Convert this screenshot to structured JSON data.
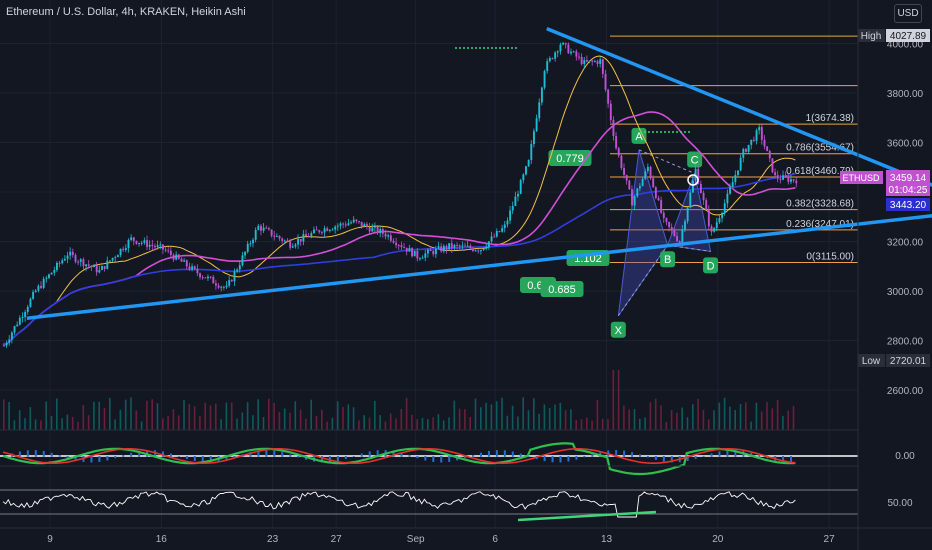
{
  "header": {
    "title": "Ethereum / U.S. Dollar, 4h, KRAKEN, Heikin Ashi",
    "currency": "USD"
  },
  "chart_data": {
    "type": "candlestick",
    "symbol": "ETHUSD",
    "price_axis": {
      "min": 2500,
      "max": 4100,
      "ticks": [
        2600,
        2800,
        3000,
        3200,
        3400,
        3600,
        3800,
        4000
      ],
      "tick_labels": [
        "2600.00",
        "2800.00",
        "3000.00",
        "3200.00",
        "3400.00",
        "3600.00",
        "3800.00",
        "4000.00"
      ]
    },
    "time_axis": {
      "labels": [
        {
          "label": "9",
          "day": 9
        },
        {
          "label": "16",
          "day": 16
        },
        {
          "label": "23",
          "day": 23
        },
        {
          "label": "27",
          "day": 27
        },
        {
          "label": "Sep",
          "day": 32
        },
        {
          "label": "6",
          "day": 37
        },
        {
          "label": "13",
          "day": 44
        },
        {
          "label": "20",
          "day": 51
        },
        {
          "label": "27",
          "day": 58
        }
      ]
    },
    "high": {
      "label": "High",
      "value": "4027.89"
    },
    "low": {
      "label": "Low",
      "value": "2720.01"
    },
    "last_price": {
      "symbol": "ETHUSD",
      "value": "3459.14",
      "countdown": "01:04:25"
    },
    "level_tag": "3443.20",
    "fib_levels": [
      {
        "ratio": "1",
        "price": 3674.38,
        "label": "1(3674.38)"
      },
      {
        "ratio": "0.786",
        "price": 3554.67,
        "label": "0.786(3554.67)"
      },
      {
        "ratio": "0.618",
        "price": 3460.79,
        "label": "0.618(3460.79)"
      },
      {
        "ratio": "0.382",
        "price": 3328.68,
        "label": "0.382(3328.68)"
      },
      {
        "ratio": "0.236",
        "price": 3247.01,
        "label": "0.236(3247.01)"
      },
      {
        "ratio": "0",
        "price": 3115.0,
        "label": "0(3115.00)"
      }
    ],
    "harmonic_points": [
      {
        "name": "X",
        "day": 38.7,
        "price": 2900
      },
      {
        "name": "A",
        "day": 40.0,
        "price": 3570
      },
      {
        "name": "B",
        "day": 41.8,
        "price": 3185
      },
      {
        "name": "C",
        "day": 43.5,
        "price": 3475
      },
      {
        "name": "D",
        "day": 44.5,
        "price": 3160
      }
    ],
    "harmonic_ratios": [
      "0.779",
      "1.102",
      "0.63",
      "0.685"
    ],
    "trendlines": [
      {
        "from": {
          "day": 1.5,
          "price": 2890
        },
        "to": {
          "day": 62,
          "price": 3330
        }
      },
      {
        "from": {
          "day": 34.2,
          "price": 4060
        },
        "to": {
          "day": 62.2,
          "price": 3330
        }
      }
    ],
    "candles": [],
    "indicators": {
      "oscillator_1": {
        "zero_label": "0.00"
      },
      "oscillator_2": {
        "mid_label": "50.00"
      }
    }
  },
  "colors": {
    "bull": "#1fbcd2",
    "bear": "#c052d2",
    "trendline": "#2196f3",
    "fib": "#f0a04c",
    "ma_fast": "#f5c242",
    "ma_mid": "#d24fd6",
    "ma_slow": "#2f3ee0",
    "background": "#131722"
  }
}
